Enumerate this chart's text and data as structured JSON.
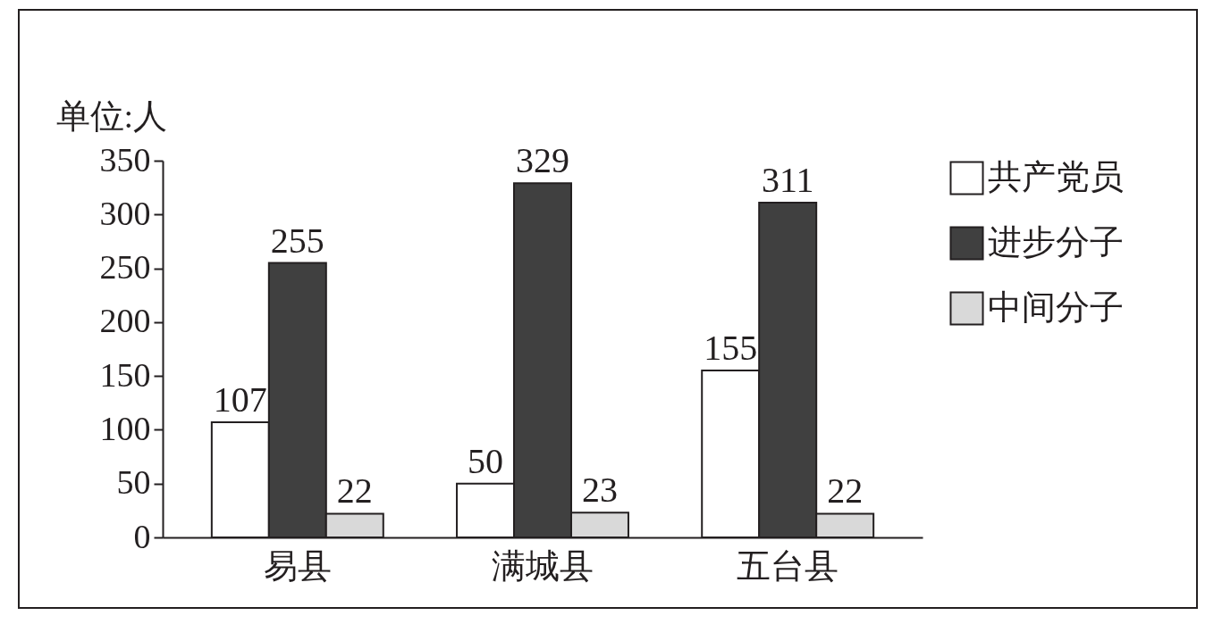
{
  "chart_data": {
    "type": "bar",
    "ylabel": "单位:人",
    "categories": [
      "易县",
      "满城县",
      "五台县"
    ],
    "series": [
      {
        "name": "共产党员",
        "color": "#ffffff",
        "values": [
          107,
          50,
          155
        ]
      },
      {
        "name": "进步分子",
        "color": "#404040",
        "values": [
          255,
          329,
          311
        ]
      },
      {
        "name": "中间分子",
        "color": "#d9d9d9",
        "values": [
          22,
          23,
          22
        ]
      }
    ],
    "ylim": [
      0,
      350
    ],
    "yticks": [
      0,
      50,
      100,
      150,
      200,
      250,
      300,
      350
    ],
    "data_labels": true,
    "grid": false,
    "legend": "right"
  }
}
